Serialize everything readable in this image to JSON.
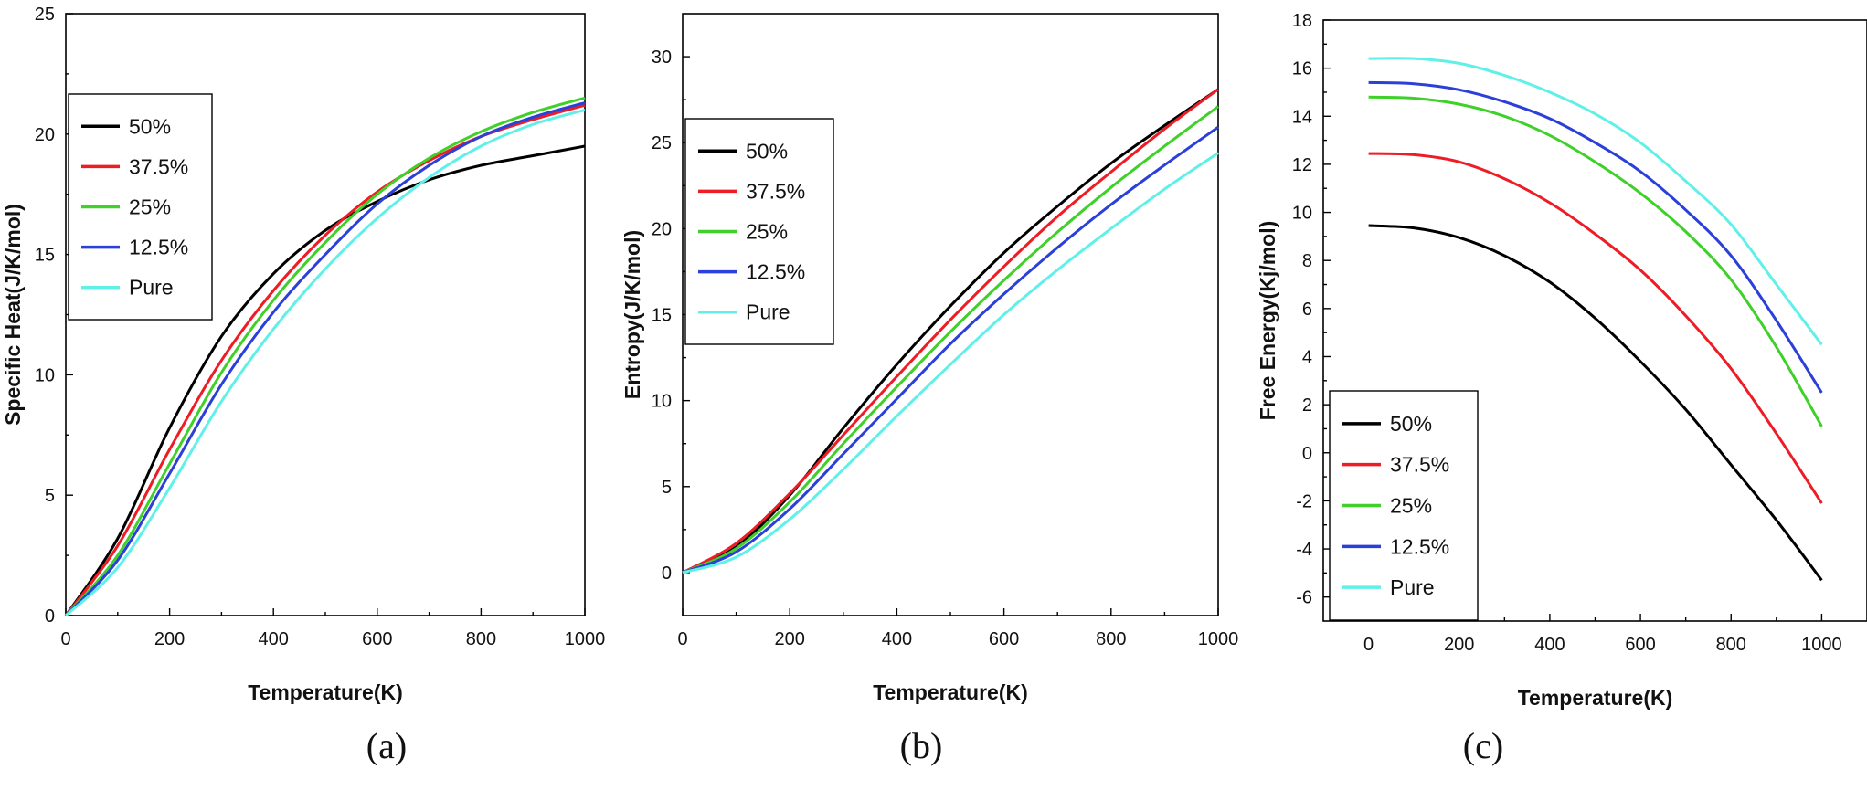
{
  "chart_data": [
    {
      "type": "line",
      "panel": "(a)",
      "xlabel": "Temperature(K)",
      "ylabel": "Specific Heat(J/K/mol)",
      "xlim": [
        0,
        1000
      ],
      "ylim": [
        0,
        25
      ],
      "xticks": [
        0,
        200,
        400,
        600,
        800,
        1000
      ],
      "yticks": [
        0,
        5,
        10,
        15,
        20,
        25
      ],
      "grid": false,
      "legend_position": "upper-left",
      "x": [
        0,
        100,
        200,
        300,
        400,
        500,
        600,
        700,
        800,
        900,
        1000
      ],
      "series": [
        {
          "name": "50%",
          "color": "#000000",
          "values": [
            0,
            3.2,
            7.8,
            11.6,
            14.2,
            16.0,
            17.2,
            18.1,
            18.7,
            19.1,
            19.5
          ]
        },
        {
          "name": "37.5%",
          "color": "#ee1c25",
          "values": [
            0,
            2.9,
            6.9,
            10.6,
            13.5,
            15.8,
            17.6,
            18.9,
            19.9,
            20.6,
            21.2
          ]
        },
        {
          "name": "25%",
          "color": "#3fd02a",
          "values": [
            0,
            2.5,
            6.3,
            10.1,
            13.1,
            15.5,
            17.5,
            19.0,
            20.1,
            20.9,
            21.5
          ]
        },
        {
          "name": "12.5%",
          "color": "#2b3fd9",
          "values": [
            0,
            2.3,
            5.9,
            9.6,
            12.6,
            15.0,
            17.1,
            18.7,
            19.9,
            20.7,
            21.3
          ]
        },
        {
          "name": "Pure",
          "color": "#5ff0e8",
          "values": [
            0,
            2.0,
            5.3,
            8.9,
            11.9,
            14.4,
            16.5,
            18.2,
            19.5,
            20.4,
            21.0
          ]
        }
      ]
    },
    {
      "type": "line",
      "panel": "(b)",
      "xlabel": "Temperature(K)",
      "ylabel": "Entropy(J/K/mol)",
      "xlim": [
        0,
        1000
      ],
      "ylim": [
        -2.5,
        32.5
      ],
      "xticks": [
        0,
        200,
        400,
        600,
        800,
        1000
      ],
      "yticks": [
        0,
        5,
        10,
        15,
        20,
        25,
        30
      ],
      "grid": false,
      "legend_position": "upper-left",
      "x": [
        0,
        100,
        200,
        300,
        400,
        500,
        600,
        700,
        800,
        900,
        1000
      ],
      "series": [
        {
          "name": "50%",
          "color": "#000000",
          "values": [
            0,
            1.5,
            4.5,
            8.4,
            12.1,
            15.5,
            18.6,
            21.3,
            23.8,
            26.0,
            28.1
          ]
        },
        {
          "name": "37.5%",
          "color": "#ee1c25",
          "values": [
            0,
            1.7,
            4.6,
            8.0,
            11.4,
            14.7,
            17.8,
            20.7,
            23.3,
            25.8,
            28.1
          ]
        },
        {
          "name": "25%",
          "color": "#3fd02a",
          "values": [
            0,
            1.4,
            4.1,
            7.5,
            10.8,
            14.0,
            17.0,
            19.8,
            22.4,
            24.8,
            27.1
          ]
        },
        {
          "name": "12.5%",
          "color": "#2b3fd9",
          "values": [
            0,
            1.2,
            3.7,
            6.9,
            10.1,
            13.3,
            16.2,
            18.9,
            21.4,
            23.7,
            25.9
          ]
        },
        {
          "name": "Pure",
          "color": "#5ff0e8",
          "values": [
            0,
            0.9,
            3.1,
            6.0,
            9.1,
            12.1,
            15.0,
            17.6,
            20.0,
            22.3,
            24.4
          ]
        }
      ]
    },
    {
      "type": "line",
      "panel": "(c)",
      "xlabel": "Temperature(K)",
      "ylabel": "Free Energy(Kj/mol)",
      "xlim": [
        -100,
        1100
      ],
      "ylim": [
        -7,
        18
      ],
      "xticks": [
        0,
        200,
        400,
        600,
        800,
        1000
      ],
      "yticks": [
        -6,
        -4,
        -2,
        0,
        2,
        4,
        6,
        8,
        10,
        12,
        14,
        16,
        18
      ],
      "grid": false,
      "legend_position": "lower-left",
      "x": [
        0,
        100,
        200,
        300,
        400,
        500,
        600,
        700,
        800,
        900,
        1000
      ],
      "series": [
        {
          "name": "50%",
          "color": "#000000",
          "values": [
            9.45,
            9.35,
            8.95,
            8.2,
            7.1,
            5.6,
            3.8,
            1.8,
            -0.5,
            -2.8,
            -5.3
          ]
        },
        {
          "name": "37.5%",
          "color": "#ee1c25",
          "values": [
            12.45,
            12.4,
            12.1,
            11.4,
            10.4,
            9.1,
            7.6,
            5.7,
            3.5,
            0.8,
            -2.1
          ]
        },
        {
          "name": "25%",
          "color": "#3fd02a",
          "values": [
            14.8,
            14.75,
            14.5,
            14.0,
            13.2,
            12.1,
            10.8,
            9.2,
            7.2,
            4.4,
            1.1
          ]
        },
        {
          "name": "12.5%",
          "color": "#2b3fd9",
          "values": [
            15.4,
            15.35,
            15.1,
            14.6,
            13.9,
            12.9,
            11.7,
            10.1,
            8.2,
            5.5,
            2.5
          ]
        },
        {
          "name": "Pure",
          "color": "#5ff0e8",
          "values": [
            16.4,
            16.4,
            16.2,
            15.7,
            15.0,
            14.1,
            12.9,
            11.3,
            9.5,
            7.0,
            4.5
          ]
        }
      ]
    }
  ]
}
